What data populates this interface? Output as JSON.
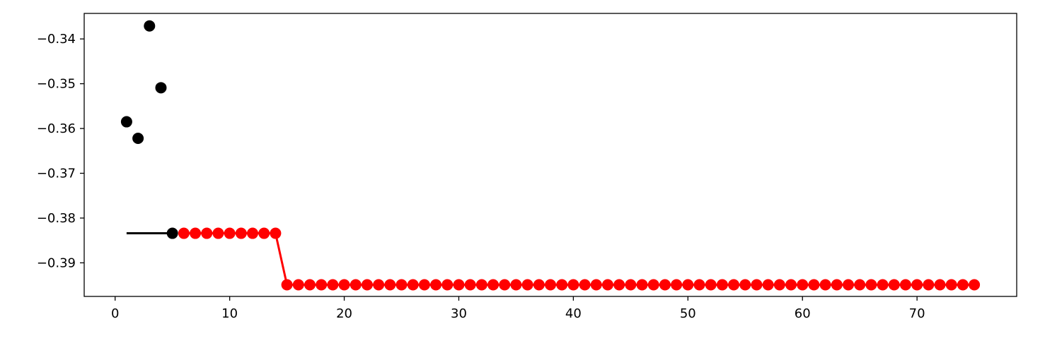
{
  "chart_data": {
    "type": "scatter",
    "title": "",
    "xlabel": "",
    "ylabel": "",
    "xlim": [
      -2.7,
      78.7
    ],
    "ylim": [
      -0.3975,
      -0.3343
    ],
    "grid": false,
    "legend": "none",
    "x_ticks": [
      0,
      10,
      20,
      30,
      40,
      50,
      60,
      70
    ],
    "y_ticks": [
      -0.34,
      -0.35,
      -0.36,
      -0.37,
      -0.38,
      -0.39
    ],
    "x_tick_labels": [
      "0",
      "10",
      "20",
      "30",
      "40",
      "50",
      "60",
      "70"
    ],
    "y_tick_labels": [
      "−0.34",
      "−0.35",
      "−0.36",
      "−0.37",
      "−0.38",
      "−0.39"
    ],
    "black_line": {
      "color": "#000000",
      "x": [
        1,
        5
      ],
      "y": [
        -0.3834,
        -0.3834
      ]
    },
    "black_points": {
      "color": "#000000",
      "x": [
        1,
        2,
        3,
        4,
        5
      ],
      "y": [
        -0.3585,
        -0.3622,
        -0.3371,
        -0.3509,
        -0.3834
      ]
    },
    "red_series": {
      "color": "#ff0000",
      "x_start": 6,
      "x_end": 75,
      "levels": [
        {
          "from": 6,
          "to": 14,
          "y": -0.3834
        },
        {
          "from": 15,
          "to": 75,
          "y": -0.3949
        }
      ]
    }
  }
}
